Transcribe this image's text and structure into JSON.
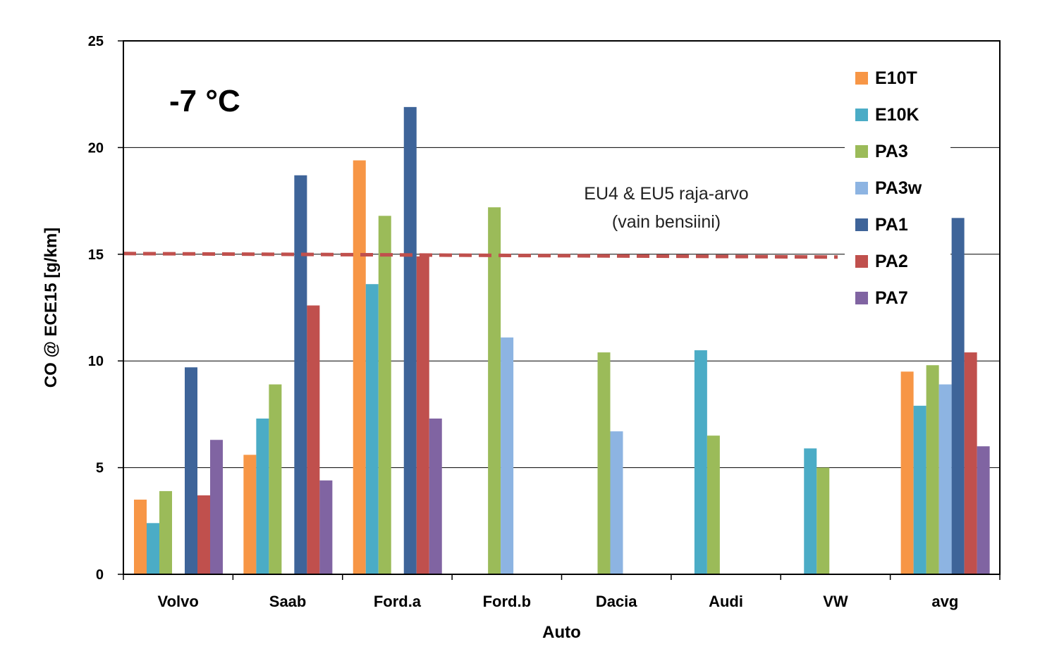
{
  "chart_data": {
    "type": "bar",
    "xlabel": "Auto",
    "ylabel": "CO @ ECE15 [g/km]",
    "ylim": [
      0,
      25
    ],
    "yticks": [
      0,
      5,
      10,
      15,
      20,
      25
    ],
    "grid": true,
    "legend_position": "top-right",
    "categories": [
      "Volvo",
      "Saab",
      "Ford.a",
      "Ford.b",
      "Dacia",
      "Audi",
      "VW",
      "avg"
    ],
    "series": [
      {
        "name": "E10T",
        "color": "#F79646",
        "values": [
          3.5,
          5.6,
          19.4,
          null,
          null,
          null,
          null,
          9.5
        ]
      },
      {
        "name": "E10K",
        "color": "#4BACC6",
        "values": [
          2.4,
          7.3,
          13.6,
          null,
          null,
          10.5,
          5.9,
          7.9
        ]
      },
      {
        "name": "PA3",
        "color": "#9BBB59",
        "values": [
          3.9,
          8.9,
          16.8,
          17.2,
          10.4,
          6.5,
          5.0,
          9.8
        ]
      },
      {
        "name": "PA3w",
        "color": "#8DB4E2",
        "values": [
          null,
          null,
          null,
          11.1,
          6.7,
          null,
          null,
          8.9
        ]
      },
      {
        "name": "PA1",
        "color": "#3E6499",
        "values": [
          9.7,
          18.7,
          21.9,
          null,
          null,
          null,
          null,
          16.7
        ]
      },
      {
        "name": "PA2",
        "color": "#C0504D",
        "values": [
          3.7,
          12.6,
          14.9,
          null,
          null,
          null,
          null,
          10.4
        ]
      },
      {
        "name": "PA7",
        "color": "#8064A2",
        "values": [
          6.3,
          4.4,
          7.3,
          null,
          null,
          null,
          null,
          6.0
        ]
      }
    ],
    "limit_line": {
      "value": 15,
      "color": "#C0504D",
      "style": "dashed"
    },
    "annotations": {
      "temperature": "-7 °C",
      "limit_line1": "EU4 & EU5 raja-arvo",
      "limit_line2": "(vain bensiini)"
    }
  }
}
